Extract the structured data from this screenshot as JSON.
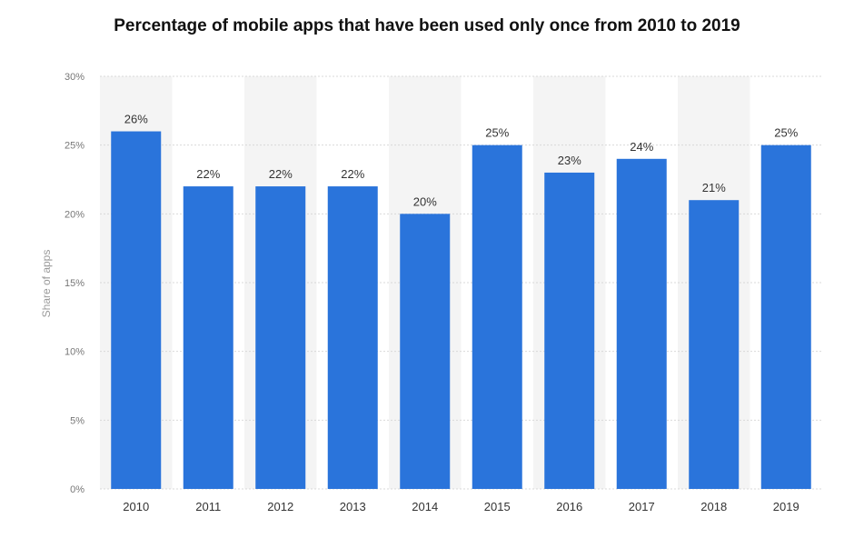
{
  "chart_data": {
    "type": "bar",
    "title": "Percentage of mobile apps that have been used only once from 2010 to 2019",
    "xlabel": "",
    "ylabel": "Share of apps",
    "categories": [
      "2010",
      "2011",
      "2012",
      "2013",
      "2014",
      "2015",
      "2016",
      "2017",
      "2018",
      "2019"
    ],
    "values": [
      26,
      22,
      22,
      22,
      20,
      25,
      23,
      24,
      21,
      25
    ],
    "data_labels": [
      "26%",
      "22%",
      "22%",
      "22%",
      "20%",
      "25%",
      "23%",
      "24%",
      "21%",
      "25%"
    ],
    "ylim": [
      0,
      30
    ],
    "yticks": [
      0,
      5,
      10,
      15,
      20,
      25,
      30
    ],
    "ytick_labels": [
      "0%",
      "5%",
      "10%",
      "15%",
      "20%",
      "25%",
      "30%"
    ],
    "grid": true,
    "legend": "none",
    "colors": {
      "bar": "#2a74db",
      "band": "#f4f4f4",
      "grid": "#d9d9d9"
    }
  }
}
